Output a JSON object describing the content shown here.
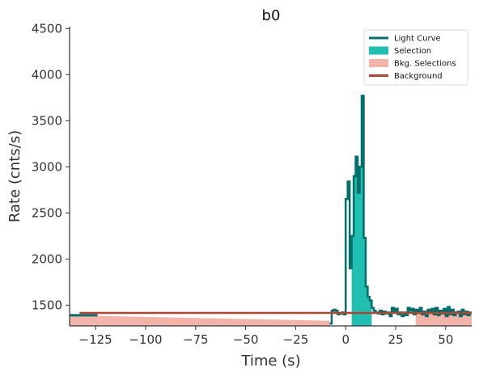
{
  "chart_data": {
    "type": "line",
    "title": "b0",
    "xlabel": "Time (s)",
    "ylabel": "Rate (cnts/s)",
    "xlim": [
      -138,
      63
    ],
    "ylim": [
      1275,
      4520
    ],
    "x_ticks": [
      -125,
      -100,
      -75,
      -50,
      -25,
      0,
      25,
      50
    ],
    "x_tick_labels": [
      "−125",
      "−100",
      "−75",
      "−50",
      "−25",
      "0",
      "25",
      "50"
    ],
    "y_ticks": [
      1500,
      2000,
      2500,
      3000,
      3500,
      4000,
      4500
    ],
    "y_tick_labels": [
      "1500",
      "2000",
      "2500",
      "3000",
      "3500",
      "4000",
      "4500"
    ],
    "grid": false,
    "legend_position": "top-right",
    "legend": [
      {
        "label": "Light Curve",
        "kind": "line",
        "color": "#00706b"
      },
      {
        "label": "Selection",
        "kind": "patch",
        "color": "#1fbfb2"
      },
      {
        "label": "Bkg. Selections",
        "kind": "patch",
        "color": "#f4b3a8"
      },
      {
        "label": "Background",
        "kind": "line",
        "color": "#b5412f"
      }
    ],
    "series": [
      {
        "name": "Light Curve",
        "step": "post",
        "color": "#00706b",
        "points": [
          [
            -138,
            1390
          ],
          [
            -131,
            1390
          ],
          [
            -124,
            1390
          ],
          [
            -8,
            1300
          ],
          [
            -7,
            1440
          ],
          [
            -6,
            1450
          ],
          [
            -5,
            1440
          ],
          [
            -4,
            1400
          ],
          [
            -3,
            1410
          ],
          [
            -2,
            1420
          ],
          [
            -1,
            1400
          ],
          [
            0,
            2650
          ],
          [
            1,
            2840
          ],
          [
            2,
            1900
          ],
          [
            3,
            2250
          ],
          [
            4,
            2900
          ],
          [
            5,
            3110
          ],
          [
            6,
            2720
          ],
          [
            7,
            3000
          ],
          [
            8,
            3770
          ],
          [
            9,
            2230
          ],
          [
            10,
            1700
          ],
          [
            11,
            1590
          ],
          [
            12,
            1550
          ],
          [
            13,
            1470
          ],
          [
            14,
            1440
          ],
          [
            15,
            1420
          ],
          [
            16,
            1410
          ],
          [
            17,
            1440
          ],
          [
            18,
            1400
          ],
          [
            19,
            1430
          ],
          [
            20,
            1410
          ],
          [
            21,
            1420
          ],
          [
            22,
            1380
          ],
          [
            23,
            1470
          ],
          [
            24,
            1420
          ],
          [
            25,
            1460
          ],
          [
            26,
            1400
          ],
          [
            27,
            1420
          ],
          [
            28,
            1380
          ],
          [
            29,
            1420
          ],
          [
            30,
            1390
          ],
          [
            31,
            1470
          ],
          [
            32,
            1440
          ],
          [
            33,
            1460
          ],
          [
            34,
            1400
          ],
          [
            35,
            1450
          ],
          [
            36,
            1420
          ],
          [
            37,
            1470
          ],
          [
            38,
            1400
          ],
          [
            39,
            1430
          ],
          [
            40,
            1380
          ],
          [
            41,
            1450
          ],
          [
            42,
            1420
          ],
          [
            43,
            1460
          ],
          [
            44,
            1400
          ],
          [
            45,
            1470
          ],
          [
            46,
            1390
          ],
          [
            47,
            1440
          ],
          [
            48,
            1410
          ],
          [
            49,
            1460
          ],
          [
            50,
            1380
          ],
          [
            51,
            1480
          ],
          [
            52,
            1400
          ],
          [
            53,
            1450
          ],
          [
            54,
            1390
          ],
          [
            55,
            1420
          ],
          [
            56,
            1430
          ],
          [
            57,
            1380
          ],
          [
            58,
            1450
          ],
          [
            59,
            1400
          ],
          [
            60,
            1430
          ],
          [
            61,
            1390
          ],
          [
            62,
            1420
          ],
          [
            63,
            1420
          ]
        ]
      },
      {
        "name": "Background",
        "kind": "line",
        "color": "#b5412f",
        "points": [
          [
            -133,
            1415
          ],
          [
            63,
            1415
          ]
        ]
      }
    ],
    "selection": {
      "color": "#1fbfb2",
      "x_range": [
        3,
        13
      ],
      "points": [
        [
          3,
          2250
        ],
        [
          4,
          2900
        ],
        [
          5,
          3110
        ],
        [
          6,
          2720
        ],
        [
          7,
          3000
        ],
        [
          8,
          3770
        ],
        [
          9,
          2230
        ],
        [
          10,
          1700
        ],
        [
          11,
          1590
        ],
        [
          12,
          1550
        ],
        [
          13,
          1550
        ]
      ]
    },
    "background_selections": {
      "color": "#f4b3a8",
      "regions": [
        {
          "x_range": [
            -138,
            -8
          ],
          "top": [
            [
              -138,
              1390
            ],
            [
              -8,
              1330
            ]
          ]
        },
        {
          "x_range": [
            35,
            63
          ],
          "top": [
            [
              35,
              1410
            ],
            [
              63,
              1410
            ]
          ]
        }
      ]
    }
  }
}
